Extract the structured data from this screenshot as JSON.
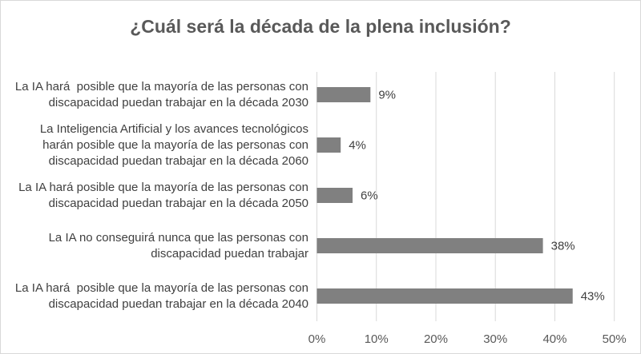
{
  "chart_data": {
    "type": "bar",
    "orientation": "horizontal",
    "title": "¿Cuál será la década de la plena inclusión?",
    "categories": [
      [
        "La IA hará  posible que la mayoría de las personas con",
        "discapacidad puedan trabajar en la década 2030"
      ],
      [
        "La Inteligencia Artificial y los avances tecnológicos",
        "harán posible que la mayoría de las personas con",
        "discapacidad puedan trabajar en la década 2060"
      ],
      [
        "La IA hará posible que la mayoría de las personas con",
        "discapacidad puedan trabajar en la década 2050"
      ],
      [
        "La IA no conseguirá nunca que las personas con",
        "discapacidad puedan trabajar"
      ],
      [
        "La IA hará  posible que la mayoría de las personas con",
        "discapacidad puedan trabajar en la década 2040"
      ]
    ],
    "values": [
      9,
      4,
      6,
      38,
      43
    ],
    "data_labels": [
      "9%",
      "4%",
      "6%",
      "38%",
      "43%"
    ],
    "xlim": [
      0,
      50
    ],
    "x_ticks": [
      "0%",
      "10%",
      "20%",
      "30%",
      "40%",
      "50%"
    ],
    "grid": true,
    "bar_color": "#808080",
    "xlabel": "",
    "ylabel": ""
  }
}
